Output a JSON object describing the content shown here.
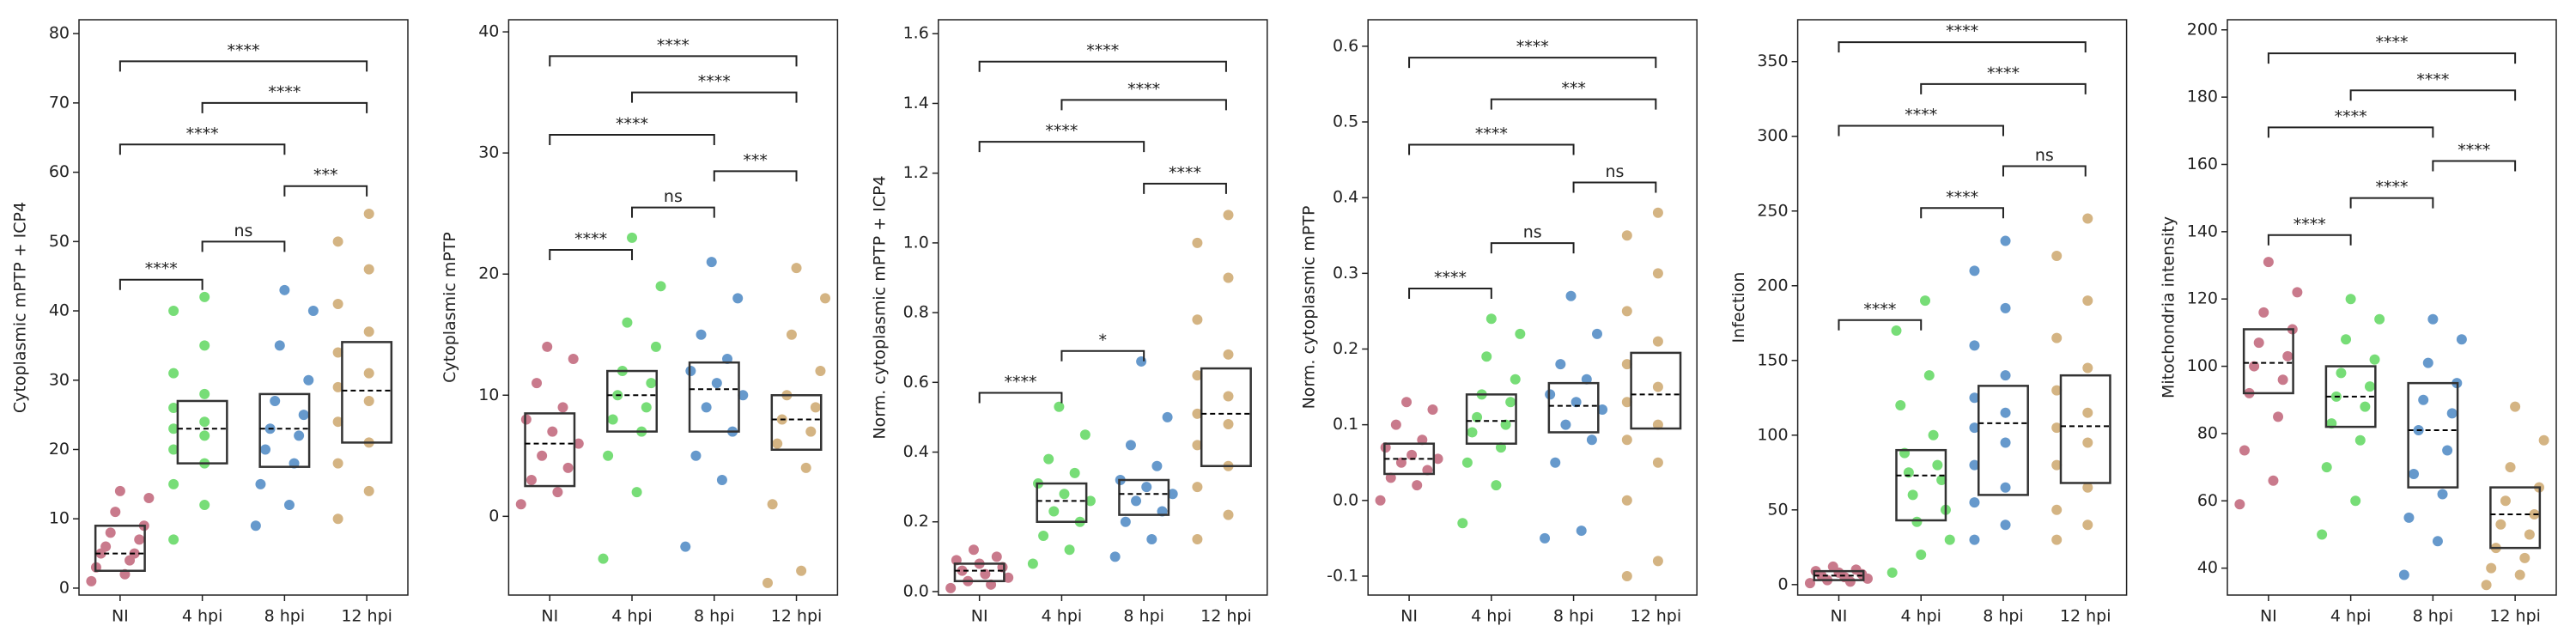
{
  "chart_data": [
    {
      "type": "box-swarm",
      "y_label": "Cytoplasmic mPTP + ICP4",
      "categories": [
        "NI",
        "4 hpi",
        "8 hpi",
        "12 hpi"
      ],
      "colors": [
        "#c97a8c",
        "#77dd77",
        "#6699cc",
        "#d4b483"
      ],
      "ylim": [
        -1,
        82
      ],
      "yticks": [
        0,
        10,
        20,
        30,
        40,
        50,
        60,
        70,
        80
      ],
      "q1": [
        2.5,
        18,
        17.5,
        21
      ],
      "median": [
        5,
        23,
        23,
        28.5
      ],
      "q3": [
        9,
        27,
        28,
        35.5
      ],
      "points": [
        [
          1,
          2,
          3,
          4,
          5,
          5,
          6,
          7,
          8,
          9,
          11,
          13,
          14
        ],
        [
          7,
          12,
          15,
          18,
          20,
          22,
          23,
          24,
          26,
          28,
          31,
          35,
          40,
          42
        ],
        [
          9,
          12,
          15,
          18,
          20,
          22,
          23,
          25,
          27,
          30,
          35,
          40,
          43
        ],
        [
          10,
          14,
          18,
          21,
          24,
          27,
          29,
          31,
          34,
          37,
          41,
          46,
          50,
          54
        ]
      ],
      "brackets": [
        {
          "from": "NI",
          "to": "4 hpi",
          "y": 44.5,
          "label": "****"
        },
        {
          "from": "4 hpi",
          "to": "8 hpi",
          "y": 50,
          "label": "ns"
        },
        {
          "from": "8 hpi",
          "to": "12 hpi",
          "y": 58,
          "label": "***"
        },
        {
          "from": "NI",
          "to": "8 hpi",
          "y": 64,
          "label": "****"
        },
        {
          "from": "4 hpi",
          "to": "12 hpi",
          "y": 70,
          "label": "****"
        },
        {
          "from": "NI",
          "to": "12 hpi",
          "y": 76,
          "label": "****"
        }
      ]
    },
    {
      "type": "box-swarm",
      "y_label": "Cytoplasmic mPTP",
      "categories": [
        "NI",
        "4 hpi",
        "8 hpi",
        "12 hpi"
      ],
      "colors": [
        "#c97a8c",
        "#77dd77",
        "#6699cc",
        "#d4b483"
      ],
      "ylim": [
        -6.5,
        41
      ],
      "yticks": [
        0,
        10,
        20,
        30,
        40
      ],
      "q1": [
        2.5,
        7,
        7,
        5.5
      ],
      "median": [
        6,
        10,
        10.5,
        8
      ],
      "q3": [
        8.5,
        12,
        12.7,
        10
      ],
      "points": [
        [
          1,
          2,
          3,
          4,
          5,
          6,
          7,
          8,
          9,
          11,
          13,
          14
        ],
        [
          -3.5,
          2,
          5,
          7,
          8,
          9,
          10,
          11,
          12,
          14,
          16,
          19,
          23
        ],
        [
          -2.5,
          3,
          5,
          7,
          9,
          10,
          11,
          12,
          13,
          15,
          18,
          21
        ],
        [
          -5.5,
          -4.5,
          1,
          4,
          6,
          7,
          8,
          9,
          10,
          12,
          15,
          18,
          20.5
        ]
      ],
      "brackets": [
        {
          "from": "NI",
          "to": "4 hpi",
          "y": 22,
          "label": "****"
        },
        {
          "from": "4 hpi",
          "to": "8 hpi",
          "y": 25.5,
          "label": "ns"
        },
        {
          "from": "8 hpi",
          "to": "12 hpi",
          "y": 28.5,
          "label": "***"
        },
        {
          "from": "NI",
          "to": "8 hpi",
          "y": 31.5,
          "label": "****"
        },
        {
          "from": "4 hpi",
          "to": "12 hpi",
          "y": 35,
          "label": "****"
        },
        {
          "from": "NI",
          "to": "12 hpi",
          "y": 38,
          "label": "****"
        }
      ]
    },
    {
      "type": "box-swarm",
      "y_label": "Norm. cytoplasmic mPTP + ICP4",
      "categories": [
        "NI",
        "4 hpi",
        "8 hpi",
        "12 hpi"
      ],
      "colors": [
        "#c97a8c",
        "#77dd77",
        "#6699cc",
        "#d4b483"
      ],
      "ylim": [
        -0.01,
        1.64
      ],
      "yticks": [
        {
          "value": 0,
          "label": "0.0"
        },
        0.2,
        0.4,
        0.6,
        0.8,
        {
          "value": 1,
          "label": "1.0"
        },
        1.2,
        1.4,
        1.6
      ],
      "q1": [
        0.03,
        0.2,
        0.22,
        0.36
      ],
      "median": [
        0.06,
        0.26,
        0.28,
        0.51
      ],
      "q3": [
        0.08,
        0.31,
        0.32,
        0.64
      ],
      "points": [
        [
          0.01,
          0.02,
          0.03,
          0.04,
          0.05,
          0.06,
          0.07,
          0.08,
          0.09,
          0.1,
          0.12
        ],
        [
          0.08,
          0.12,
          0.16,
          0.2,
          0.23,
          0.26,
          0.28,
          0.31,
          0.34,
          0.38,
          0.45,
          0.53
        ],
        [
          0.1,
          0.15,
          0.2,
          0.23,
          0.26,
          0.28,
          0.3,
          0.32,
          0.36,
          0.42,
          0.5,
          0.66
        ],
        [
          0.15,
          0.22,
          0.3,
          0.36,
          0.42,
          0.48,
          0.51,
          0.56,
          0.62,
          0.68,
          0.78,
          0.9,
          1.0,
          1.08
        ]
      ],
      "brackets": [
        {
          "from": "NI",
          "to": "4 hpi",
          "y": 0.57,
          "label": "****"
        },
        {
          "from": "4 hpi",
          "to": "8 hpi",
          "y": 0.69,
          "label": "*"
        },
        {
          "from": "8 hpi",
          "to": "12 hpi",
          "y": 1.17,
          "label": "****"
        },
        {
          "from": "NI",
          "to": "8 hpi",
          "y": 1.29,
          "label": "****"
        },
        {
          "from": "4 hpi",
          "to": "12 hpi",
          "y": 1.41,
          "label": "****"
        },
        {
          "from": "NI",
          "to": "12 hpi",
          "y": 1.52,
          "label": "****"
        }
      ]
    },
    {
      "type": "box-swarm",
      "y_label": "Norm. cytoplasmic mPTP",
      "categories": [
        "NI",
        "4 hpi",
        "8 hpi",
        "12 hpi"
      ],
      "colors": [
        "#c97a8c",
        "#77dd77",
        "#6699cc",
        "#d4b483"
      ],
      "ylim": [
        -0.125,
        0.635
      ],
      "yticks": [
        -0.1,
        {
          "value": 0,
          "label": "0.0"
        },
        0.1,
        0.2,
        0.3,
        0.4,
        0.5,
        0.6
      ],
      "q1": [
        0.035,
        0.075,
        0.09,
        0.095
      ],
      "median": [
        0.055,
        0.105,
        0.125,
        0.14
      ],
      "q3": [
        0.075,
        0.14,
        0.155,
        0.195
      ],
      "points": [
        [
          0.0,
          0.02,
          0.03,
          0.04,
          0.05,
          0.055,
          0.06,
          0.07,
          0.08,
          0.1,
          0.12,
          0.13
        ],
        [
          -0.03,
          0.02,
          0.05,
          0.07,
          0.09,
          0.1,
          0.11,
          0.13,
          0.14,
          0.16,
          0.19,
          0.22,
          0.24
        ],
        [
          -0.05,
          -0.04,
          0.05,
          0.08,
          0.1,
          0.12,
          0.13,
          0.14,
          0.16,
          0.18,
          0.22,
          0.27
        ],
        [
          -0.1,
          -0.08,
          0.0,
          0.05,
          0.08,
          0.1,
          0.13,
          0.15,
          0.18,
          0.21,
          0.25,
          0.3,
          0.35,
          0.38
        ]
      ],
      "brackets": [
        {
          "from": "NI",
          "to": "4 hpi",
          "y": 0.28,
          "label": "****"
        },
        {
          "from": "4 hpi",
          "to": "8 hpi",
          "y": 0.34,
          "label": "ns"
        },
        {
          "from": "8 hpi",
          "to": "12 hpi",
          "y": 0.42,
          "label": "ns"
        },
        {
          "from": "NI",
          "to": "8 hpi",
          "y": 0.47,
          "label": "****"
        },
        {
          "from": "4 hpi",
          "to": "12 hpi",
          "y": 0.53,
          "label": "***"
        },
        {
          "from": "NI",
          "to": "12 hpi",
          "y": 0.585,
          "label": "****"
        }
      ]
    },
    {
      "type": "box-swarm",
      "y_label": "Infection",
      "categories": [
        "NI",
        "4 hpi",
        "8 hpi",
        "12 hpi"
      ],
      "colors": [
        "#c97a8c",
        "#77dd77",
        "#6699cc",
        "#d4b483"
      ],
      "ylim": [
        -7,
        378
      ],
      "yticks": [
        0,
        50,
        100,
        150,
        200,
        250,
        300,
        350
      ],
      "q1": [
        3,
        43,
        60,
        68
      ],
      "median": [
        6,
        73,
        108,
        106
      ],
      "q3": [
        9,
        90,
        133,
        140
      ],
      "points": [
        [
          1,
          2,
          3,
          4,
          5,
          6,
          7,
          8,
          9,
          10,
          12
        ],
        [
          8,
          20,
          30,
          42,
          50,
          60,
          70,
          75,
          80,
          88,
          100,
          120,
          140,
          170,
          190
        ],
        [
          30,
          40,
          55,
          65,
          80,
          95,
          105,
          115,
          125,
          140,
          160,
          185,
          210,
          230
        ],
        [
          30,
          40,
          50,
          65,
          80,
          95,
          105,
          115,
          130,
          145,
          165,
          190,
          220,
          245
        ]
      ],
      "brackets": [
        {
          "from": "NI",
          "to": "4 hpi",
          "y": 177,
          "label": "****"
        },
        {
          "from": "4 hpi",
          "to": "8 hpi",
          "y": 252,
          "label": "****"
        },
        {
          "from": "8 hpi",
          "to": "12 hpi",
          "y": 280,
          "label": "ns"
        },
        {
          "from": "NI",
          "to": "8 hpi",
          "y": 307,
          "label": "****"
        },
        {
          "from": "4 hpi",
          "to": "12 hpi",
          "y": 335,
          "label": "****"
        },
        {
          "from": "NI",
          "to": "12 hpi",
          "y": 363,
          "label": "****"
        }
      ]
    },
    {
      "type": "box-swarm",
      "y_label": "Mitochondria intensity",
      "categories": [
        "NI",
        "4 hpi",
        "8 hpi",
        "12 hpi"
      ],
      "colors": [
        "#c97a8c",
        "#77dd77",
        "#6699cc",
        "#d4b483"
      ],
      "ylim": [
        32,
        203
      ],
      "yticks": [
        40,
        60,
        80,
        100,
        120,
        140,
        160,
        180,
        200
      ],
      "q1": [
        92,
        82,
        64,
        46
      ],
      "median": [
        101,
        91,
        81,
        56
      ],
      "q3": [
        111,
        100,
        95,
        64
      ],
      "points": [
        [
          59,
          66,
          75,
          85,
          92,
          96,
          100,
          103,
          107,
          111,
          116,
          122,
          131
        ],
        [
          50,
          60,
          70,
          78,
          83,
          88,
          91,
          94,
          98,
          102,
          108,
          114,
          120
        ],
        [
          38,
          48,
          55,
          62,
          68,
          75,
          81,
          86,
          90,
          95,
          101,
          108,
          114
        ],
        [
          35,
          38,
          40,
          43,
          46,
          50,
          53,
          56,
          60,
          64,
          70,
          78,
          88
        ]
      ],
      "brackets": [
        {
          "from": "NI",
          "to": "4 hpi",
          "y": 139,
          "label": "****"
        },
        {
          "from": "4 hpi",
          "to": "8 hpi",
          "y": 150,
          "label": "****"
        },
        {
          "from": "8 hpi",
          "to": "12 hpi",
          "y": 161,
          "label": "****"
        },
        {
          "from": "NI",
          "to": "8 hpi",
          "y": 171,
          "label": "****"
        },
        {
          "from": "4 hpi",
          "to": "12 hpi",
          "y": 182,
          "label": "****"
        },
        {
          "from": "NI",
          "to": "12 hpi",
          "y": 193,
          "label": "****"
        }
      ]
    }
  ]
}
